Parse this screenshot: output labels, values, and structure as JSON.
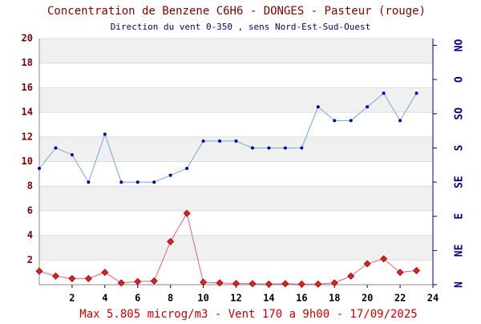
{
  "chart_data": {
    "type": "line",
    "title": "Concentration de Benzene C6H6  -   DONGES - Pasteur (rouge)",
    "subtitle": "Direction du vent 0-350 , sens Nord-Est-Sud-Ouest",
    "footer": "Max 5.805 microg/m3 - Vent 170  a 9h00 - 17/09/2025",
    "x": [
      0,
      1,
      2,
      3,
      4,
      5,
      6,
      7,
      8,
      9,
      10,
      11,
      12,
      13,
      14,
      15,
      16,
      17,
      18,
      19,
      20,
      21,
      22,
      23
    ],
    "xlim": [
      0,
      24
    ],
    "xticks": [
      2,
      4,
      6,
      8,
      10,
      12,
      14,
      16,
      18,
      20,
      22,
      24
    ],
    "ylim": [
      0,
      20
    ],
    "yticks": [
      2,
      4,
      6,
      8,
      10,
      12,
      14,
      16,
      18,
      20
    ],
    "y2lim": [
      0,
      360
    ],
    "y2ticks": [
      {
        "value": 0,
        "label": "N"
      },
      {
        "value": 50,
        "label": "NE"
      },
      {
        "value": 100,
        "label": "E"
      },
      {
        "value": 150,
        "label": "SE"
      },
      {
        "value": 200,
        "label": "S"
      },
      {
        "value": 250,
        "label": "SO"
      },
      {
        "value": 300,
        "label": "O"
      },
      {
        "value": 350,
        "label": "NO"
      }
    ],
    "series": [
      {
        "color": "#e0607e",
        "marker_color": "#dd2222",
        "values": [
          1.1,
          0.7,
          0.5,
          0.5,
          1.0,
          0.15,
          0.25,
          0.3,
          3.5,
          5.8,
          0.2,
          0.15,
          0.1,
          0.08,
          0.05,
          0.08,
          0.05,
          0.05,
          0.15,
          0.7,
          1.7,
          2.1,
          1.0,
          1.15
        ]
      },
      {
        "color": "#6fa8dc",
        "marker_color": "#0000aa",
        "axis": "y2",
        "values": [
          170,
          200,
          190,
          150,
          220,
          150,
          150,
          150,
          160,
          170,
          210,
          210,
          210,
          200,
          200,
          200,
          200,
          260,
          240,
          240,
          260,
          280,
          240,
          280
        ]
      }
    ]
  }
}
